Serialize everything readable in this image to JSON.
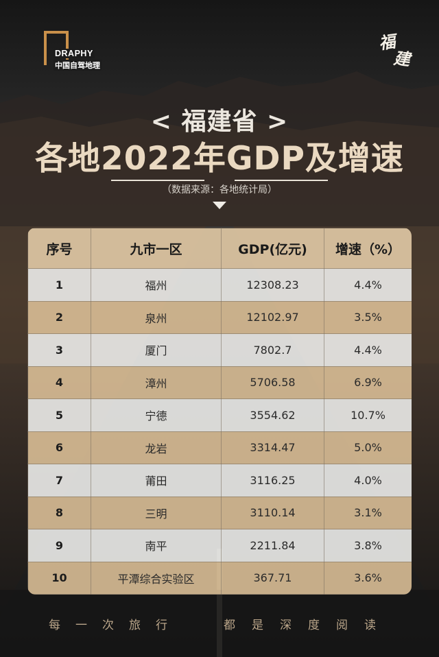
{
  "logo": {
    "word": "DRAPHY",
    "sub": "中国自驾地理"
  },
  "stamp": {
    "char1": "福",
    "char2": "建"
  },
  "title": {
    "province": "< 福建省 >",
    "main": "各地2022年GDP及增速"
  },
  "source": "（数据来源：各地统计局）",
  "table": {
    "headers": [
      "序号",
      "九市一区",
      "GDP(亿元)",
      "增速（%）"
    ],
    "rows": [
      [
        "1",
        "福州",
        "12308.23",
        "4.4%"
      ],
      [
        "2",
        "泉州",
        "12102.97",
        "3.5%"
      ],
      [
        "3",
        "厦门",
        "7802.7",
        "4.4%"
      ],
      [
        "4",
        "漳州",
        "5706.58",
        "6.9%"
      ],
      [
        "5",
        "宁德",
        "3554.62",
        "10.7%"
      ],
      [
        "6",
        "龙岩",
        "3314.47",
        "5.0%"
      ],
      [
        "7",
        "莆田",
        "3116.25",
        "4.0%"
      ],
      [
        "8",
        "三明",
        "3110.14",
        "3.1%"
      ],
      [
        "9",
        "南平",
        "2211.84",
        "3.8%"
      ],
      [
        "10",
        "平潭综合实验区",
        "367.71",
        "3.6%"
      ]
    ]
  },
  "footer": {
    "left": "每一次旅行",
    "right": "都是深度阅读"
  },
  "colors": {
    "accent": "#c9904a",
    "title": "#ead9c1",
    "row_light": "#ececea",
    "row_tan": "#d9be96"
  }
}
